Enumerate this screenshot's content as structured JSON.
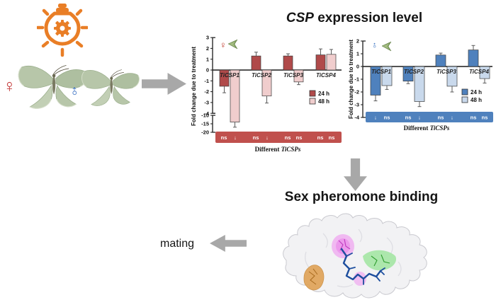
{
  "header": {
    "title_italic": "CSP",
    "title_rest": " expression level"
  },
  "labels": {
    "mating": "mating",
    "binding": "Sex pheromone binding",
    "female_symbol": "♀",
    "male_symbol": "♂"
  },
  "icons": {
    "lightbulb-gear-icon": "orange light bulb with gear inside and rays",
    "female-symbol": "♀",
    "male-symbol": "♂ (rotated upright)",
    "moth-icon": "small green moth silhouette",
    "arrow-right-icon": "gray block arrow",
    "arrow-down-icon": "gray block arrow",
    "arrow-left-icon": "gray block arrow",
    "protein-structure": "protein surface with binding pockets and ligand"
  },
  "colors": {
    "female_24h": "#b04a4a",
    "female_48h": "#f0cdcd",
    "female_band": "#c0504d",
    "male_24h": "#4f81bd",
    "male_48h": "#c9d9ec",
    "male_band": "#4f81bd",
    "arrow_gray": "#a8a8a8",
    "bulb_orange": "#e97e26",
    "female_symbol": "#c43b3b",
    "male_symbol": "#3069c0"
  },
  "chart_data": [
    {
      "type": "bar",
      "group": "female",
      "categories": [
        "TiCSP1",
        "TiCSP2",
        "TiCSP3",
        "TiCSP4"
      ],
      "series": [
        {
          "name": "24 h",
          "color": "#b04a4a",
          "values": [
            -1.5,
            1.3,
            1.3,
            1.4
          ],
          "errors": [
            0.6,
            0.35,
            0.2,
            0.55
          ]
        },
        {
          "name": "48 h",
          "color": "#f0cdcd",
          "values": [
            -14,
            -2.4,
            -1.1,
            1.45
          ],
          "errors": [
            3,
            0.65,
            0.25,
            0.45
          ]
        }
      ],
      "significance": [
        "ns",
        "↓",
        "ns",
        "↓",
        "ns",
        "ns",
        "ns",
        "ns"
      ],
      "band_color": "#c0504d",
      "ylabel": "Fold change due to treatment",
      "xlabel_prefix": "Different ",
      "xlabel_italic": "TiCSPs",
      "yticks": [
        3,
        2,
        1,
        0,
        -1,
        -2,
        -3,
        -4
      ],
      "yticks_below_break": [
        -10,
        -15,
        -20
      ],
      "axis_break": true,
      "ylim": [
        3,
        -20
      ],
      "legend": [
        "24 h",
        "48 h"
      ]
    },
    {
      "type": "bar",
      "group": "male",
      "categories": [
        "TiCSP1",
        "TiCSP2",
        "TiCSP3",
        "TiCSP4"
      ],
      "series": [
        {
          "name": "24 h",
          "color": "#4f81bd",
          "values": [
            -2.25,
            -1.15,
            0.9,
            1.3
          ],
          "errors": [
            0.45,
            0.2,
            0.15,
            0.35
          ]
        },
        {
          "name": "48 h",
          "color": "#c9d9ec",
          "values": [
            -1.5,
            -2.75,
            -1.55,
            -0.95
          ],
          "errors": [
            0.3,
            0.4,
            0.45,
            0.35
          ]
        }
      ],
      "significance": [
        "↓",
        "ns",
        "ns",
        "↓",
        "ns",
        "↓",
        "ns",
        "ns"
      ],
      "band_color": "#4f81bd",
      "ylabel": "Fold change due to treatment",
      "xlabel_prefix": "Different ",
      "xlabel_italic": "TiCSPs",
      "yticks": [
        2,
        1,
        0,
        -1,
        -2,
        -3,
        -4
      ],
      "axis_break": false,
      "ylim": [
        2,
        -4
      ],
      "legend": [
        "24 h",
        "48 h"
      ]
    }
  ]
}
